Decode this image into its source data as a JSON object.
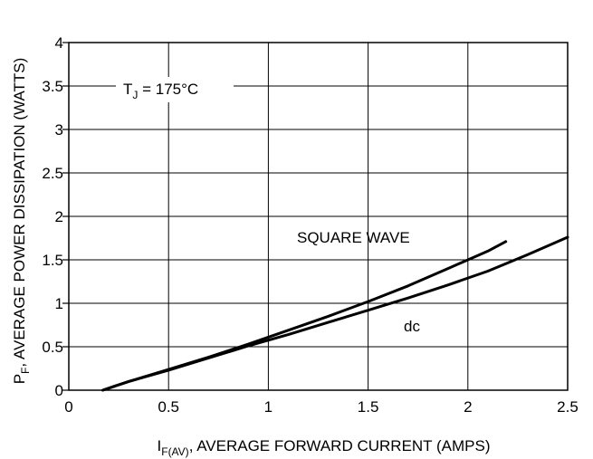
{
  "chart_data": {
    "type": "line",
    "xlabel": {
      "main": "I",
      "sub": "F(AV)",
      "rest": ", AVERAGE FORWARD CURRENT (AMPS)"
    },
    "ylabel": {
      "main": "P",
      "sub": "F",
      "rest": ", AVERAGE POWER DISSIPATION (WATTS)"
    },
    "xlim": [
      0,
      2.5
    ],
    "ylim": [
      0,
      4
    ],
    "x_ticks": [
      "0",
      "0.5",
      "1",
      "1.5",
      "2",
      "2.5"
    ],
    "y_ticks": [
      "0",
      "0.5",
      "1",
      "1.5",
      "2",
      "2.5",
      "3",
      "3.5",
      "4"
    ],
    "grid": true,
    "annotations": {
      "tj": {
        "main": "T",
        "sub": "J",
        "rest": " = 175°C"
      },
      "square_wave": "SQUARE WAVE",
      "dc": "dc"
    },
    "series": [
      {
        "name": "SQUARE WAVE",
        "x": [
          0.17,
          0.3,
          0.5,
          0.7,
          0.9,
          1.1,
          1.3,
          1.5,
          1.7,
          1.9,
          2.1,
          2.19
        ],
        "y": [
          0.0,
          0.1,
          0.24,
          0.38,
          0.53,
          0.69,
          0.85,
          1.02,
          1.2,
          1.4,
          1.6,
          1.71
        ]
      },
      {
        "name": "dc",
        "x": [
          0.17,
          0.3,
          0.5,
          0.7,
          0.9,
          1.1,
          1.3,
          1.5,
          1.7,
          1.9,
          2.1,
          2.3,
          2.5
        ],
        "y": [
          0.0,
          0.1,
          0.23,
          0.37,
          0.51,
          0.64,
          0.78,
          0.92,
          1.06,
          1.21,
          1.37,
          1.56,
          1.76
        ]
      }
    ]
  }
}
